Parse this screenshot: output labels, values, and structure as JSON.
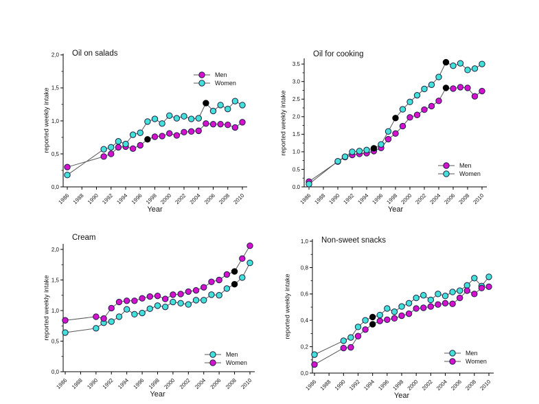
{
  "colors": {
    "magenta": "#d411cd",
    "cyan": "#43e1d8",
    "black_marker": "#000000",
    "line": "#555555",
    "marker_edge": "#1c1c44",
    "axis": "#000000"
  },
  "chart_data": [
    {
      "id": "oil-on-salads",
      "type": "line",
      "title": "Oil on salads",
      "xlabel": "Year",
      "ylabel": "reported weekly intake",
      "xlim": [
        1986,
        2010
      ],
      "ylim": [
        0,
        2.0
      ],
      "x_tick_labels": [
        "1986",
        "1988",
        "1990",
        "1992",
        "1994",
        "1996",
        "1998",
        "2000",
        "2002",
        "2004",
        "2006",
        "2008",
        "2010"
      ],
      "y_ticks": [
        {
          "v": 0.0,
          "label": "0,0"
        },
        {
          "v": 0.5,
          "label": "0,5"
        },
        {
          "v": 1.0,
          "label": "1,0"
        },
        {
          "v": 1.5,
          "label": "1,5"
        },
        {
          "v": 2.0,
          "label": "2,0"
        }
      ],
      "y_minor_step": 0.25,
      "grid": false,
      "legend_position": "upper-right",
      "series": [
        {
          "name": "Men",
          "color": "magenta",
          "years": [
            1986,
            1991,
            1992,
            1993,
            1994,
            1995,
            1996,
            1997,
            1998,
            1999,
            2000,
            2001,
            2002,
            2003,
            2004,
            2005,
            2006,
            2007,
            2008,
            2009,
            2010
          ],
          "values": [
            0.3,
            0.46,
            0.5,
            0.6,
            0.61,
            0.58,
            0.63,
            0.72,
            0.76,
            0.77,
            0.81,
            0.78,
            0.83,
            0.84,
            0.85,
            0.96,
            0.95,
            0.95,
            0.94,
            0.9,
            0.98
          ],
          "black_years": [
            1997
          ]
        },
        {
          "name": "Women",
          "color": "cyan",
          "years": [
            1986,
            1991,
            1992,
            1993,
            1994,
            1995,
            1996,
            1997,
            1998,
            1999,
            2000,
            2001,
            2002,
            2003,
            2004,
            2005,
            2006,
            2007,
            2008,
            2009,
            2010
          ],
          "values": [
            0.18,
            0.57,
            0.6,
            0.69,
            0.65,
            0.79,
            0.82,
            0.99,
            1.03,
            0.96,
            1.08,
            1.04,
            1.07,
            1.03,
            1.04,
            1.27,
            1.15,
            1.24,
            1.18,
            1.3,
            1.24
          ],
          "black_years": [
            2005
          ]
        }
      ]
    },
    {
      "id": "oil-for-cooking",
      "type": "line",
      "title": "Oil for cooking",
      "xlabel": "Year",
      "ylabel": "reported weekly intake",
      "xlim": [
        1986,
        2010
      ],
      "ylim": [
        0,
        3.5
      ],
      "x_tick_labels": [
        "1986",
        "1988",
        "1990",
        "1992",
        "1994",
        "1996",
        "1998",
        "2000",
        "2002",
        "2004",
        "2006",
        "2008",
        "2010"
      ],
      "y_ticks": [
        {
          "v": 0.0,
          "label": "0.0"
        },
        {
          "v": 0.5,
          "label": "0.5"
        },
        {
          "v": 1.0,
          "label": "1.0"
        },
        {
          "v": 1.5,
          "label": "1.5"
        },
        {
          "v": 2.0,
          "label": "2.0"
        },
        {
          "v": 2.5,
          "label": "2.5"
        },
        {
          "v": 3.0,
          "label": "3.0"
        },
        {
          "v": 3.5,
          "label": "3.5"
        }
      ],
      "y_minor_step": 0.25,
      "grid": false,
      "legend_position": "lower-right",
      "series": [
        {
          "name": "Men",
          "color": "magenta",
          "years": [
            1986,
            1990,
            1991,
            1992,
            1993,
            1994,
            1995,
            1996,
            1997,
            1998,
            1999,
            2000,
            2001,
            2002,
            2003,
            2004,
            2005,
            2006,
            2007,
            2008,
            2009,
            2010
          ],
          "values": [
            0.15,
            0.72,
            0.85,
            0.91,
            0.94,
            0.96,
            1.02,
            1.11,
            1.36,
            1.52,
            1.73,
            1.98,
            2.05,
            2.2,
            2.3,
            2.45,
            2.82,
            2.8,
            2.84,
            2.82,
            2.58,
            2.73
          ],
          "black_years": [
            2005
          ]
        },
        {
          "name": "Women",
          "color": "cyan",
          "years": [
            1986,
            1990,
            1991,
            1992,
            1993,
            1994,
            1995,
            1996,
            1997,
            1998,
            1999,
            2000,
            2001,
            2002,
            2003,
            2004,
            2005,
            2006,
            2007,
            2008,
            2009,
            2010
          ],
          "values": [
            0.08,
            0.73,
            0.86,
            1.0,
            1.02,
            1.05,
            1.1,
            1.21,
            1.58,
            1.96,
            2.21,
            2.42,
            2.61,
            2.79,
            2.91,
            3.13,
            3.55,
            3.45,
            3.52,
            3.33,
            3.37,
            3.5
          ],
          "black_years": [
            1995,
            1998,
            2005
          ]
        }
      ]
    },
    {
      "id": "cream",
      "type": "line",
      "title": "Cream",
      "xlabel": "Year",
      "ylabel": "reported weekly intake",
      "xlim": [
        1986,
        2010
      ],
      "ylim": [
        0,
        2.0
      ],
      "x_tick_labels": [
        "1986",
        "1988",
        "1990",
        "1992",
        "1994",
        "1996",
        "1998",
        "2000",
        "2002",
        "2004",
        "2006",
        "2008",
        "2010"
      ],
      "y_ticks": [
        {
          "v": 0.0,
          "label": "0,0"
        },
        {
          "v": 0.5,
          "label": "0,5"
        },
        {
          "v": 1.0,
          "label": "1,0"
        },
        {
          "v": 1.5,
          "label": "1,5"
        },
        {
          "v": 2.0,
          "label": "2,0"
        }
      ],
      "y_minor_step": 0.25,
      "grid": false,
      "legend_position": "lower-right",
      "series": [
        {
          "name": "Men",
          "color": "cyan",
          "years": [
            1986,
            1990,
            1991,
            1992,
            1993,
            1994,
            1995,
            1996,
            1997,
            1998,
            1999,
            2000,
            2001,
            2002,
            2003,
            2004,
            2005,
            2006,
            2007,
            2008,
            2009,
            2010
          ],
          "values": [
            0.64,
            0.71,
            0.8,
            0.82,
            0.9,
            1.02,
            0.94,
            0.96,
            1.03,
            1.08,
            1.06,
            1.14,
            1.12,
            1.1,
            1.17,
            1.17,
            1.26,
            1.25,
            1.36,
            1.43,
            1.54,
            1.78
          ],
          "black_years": [
            2008
          ]
        },
        {
          "name": "Women",
          "color": "magenta",
          "years": [
            1986,
            1990,
            1991,
            1992,
            1993,
            1994,
            1995,
            1996,
            1997,
            1998,
            1999,
            2000,
            2001,
            2002,
            2003,
            2004,
            2005,
            2006,
            2007,
            2008,
            2009,
            2010
          ],
          "values": [
            0.84,
            0.9,
            0.87,
            1.04,
            1.14,
            1.16,
            1.16,
            1.2,
            1.23,
            1.24,
            1.19,
            1.26,
            1.27,
            1.31,
            1.33,
            1.38,
            1.47,
            1.5,
            1.59,
            1.64,
            1.85,
            2.06
          ],
          "black_years": [
            2008
          ]
        }
      ]
    },
    {
      "id": "non-sweet-snacks",
      "type": "line",
      "title": "Non-sweet snacks",
      "xlabel": "Year",
      "ylabel": "reported weekly intake",
      "xlim": [
        1986,
        2010
      ],
      "ylim": [
        0,
        1.0
      ],
      "x_tick_labels": [
        "1986",
        "1988",
        "1990",
        "1992",
        "1994",
        "1996",
        "1998",
        "2000",
        "2002",
        "2004",
        "2006",
        "2008",
        "2010"
      ],
      "y_ticks": [
        {
          "v": 0.0,
          "label": "0,0"
        },
        {
          "v": 0.2,
          "label": "0,2"
        },
        {
          "v": 0.4,
          "label": "0,4"
        },
        {
          "v": 0.6,
          "label": "0,6"
        },
        {
          "v": 0.8,
          "label": "0,8"
        },
        {
          "v": 1.0,
          "label": "1,0"
        }
      ],
      "y_minor_step": 0.1,
      "grid": false,
      "legend_position": "lower-right",
      "series": [
        {
          "name": "Men",
          "color": "cyan",
          "years": [
            1986,
            1990,
            1991,
            1992,
            1993,
            1994,
            1995,
            1996,
            1997,
            1998,
            1999,
            2000,
            2001,
            2002,
            2003,
            2004,
            2005,
            2006,
            2007,
            2008,
            2009,
            2010
          ],
          "values": [
            0.14,
            0.245,
            0.27,
            0.35,
            0.4,
            0.425,
            0.44,
            0.49,
            0.465,
            0.505,
            0.53,
            0.57,
            0.59,
            0.555,
            0.6,
            0.585,
            0.615,
            0.625,
            0.665,
            0.72,
            0.66,
            0.73
          ],
          "black_years": [
            1994
          ]
        },
        {
          "name": "Women",
          "color": "magenta",
          "years": [
            1986,
            1990,
            1991,
            1992,
            1993,
            1994,
            1995,
            1996,
            1997,
            1998,
            1999,
            2000,
            2001,
            2002,
            2003,
            2004,
            2005,
            2006,
            2007,
            2008,
            2009,
            2010
          ],
          "values": [
            0.065,
            0.19,
            0.195,
            0.28,
            0.33,
            0.37,
            0.395,
            0.405,
            0.415,
            0.435,
            0.45,
            0.49,
            0.495,
            0.505,
            0.52,
            0.53,
            0.525,
            0.57,
            0.625,
            0.6,
            0.645,
            0.655
          ],
          "black_years": [
            1994
          ]
        }
      ]
    }
  ]
}
